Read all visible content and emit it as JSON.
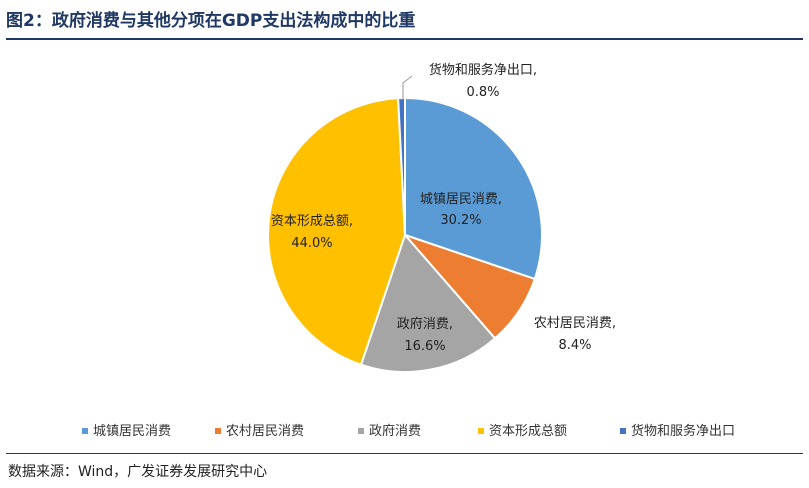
{
  "figure": {
    "title": "图2：政府消费与其他分项在GDP支出法构成中的比重",
    "source": "数据来源：Wind，广发证券发展研究中心"
  },
  "chart_data": {
    "type": "pie",
    "title": "图2：政府消费与其他分项在GDP支出法构成中的比重",
    "unit": "%",
    "legend_position": "bottom",
    "slices": [
      {
        "name": "城镇居民消费",
        "value": 30.2,
        "value_label": "30.2%",
        "color": "#5b9bd5"
      },
      {
        "name": "农村居民消费",
        "value": 8.4,
        "value_label": "8.4%",
        "color": "#ed7d31"
      },
      {
        "name": "政府消费",
        "value": 16.6,
        "value_label": "16.6%",
        "color": "#a5a5a5"
      },
      {
        "name": "资本形成总额",
        "value": 44.0,
        "value_label": "44.0%",
        "color": "#ffc000"
      },
      {
        "name": "货物和服务净出口",
        "value": 0.8,
        "value_label": "0.8%",
        "color": "#4472c4"
      }
    ]
  }
}
